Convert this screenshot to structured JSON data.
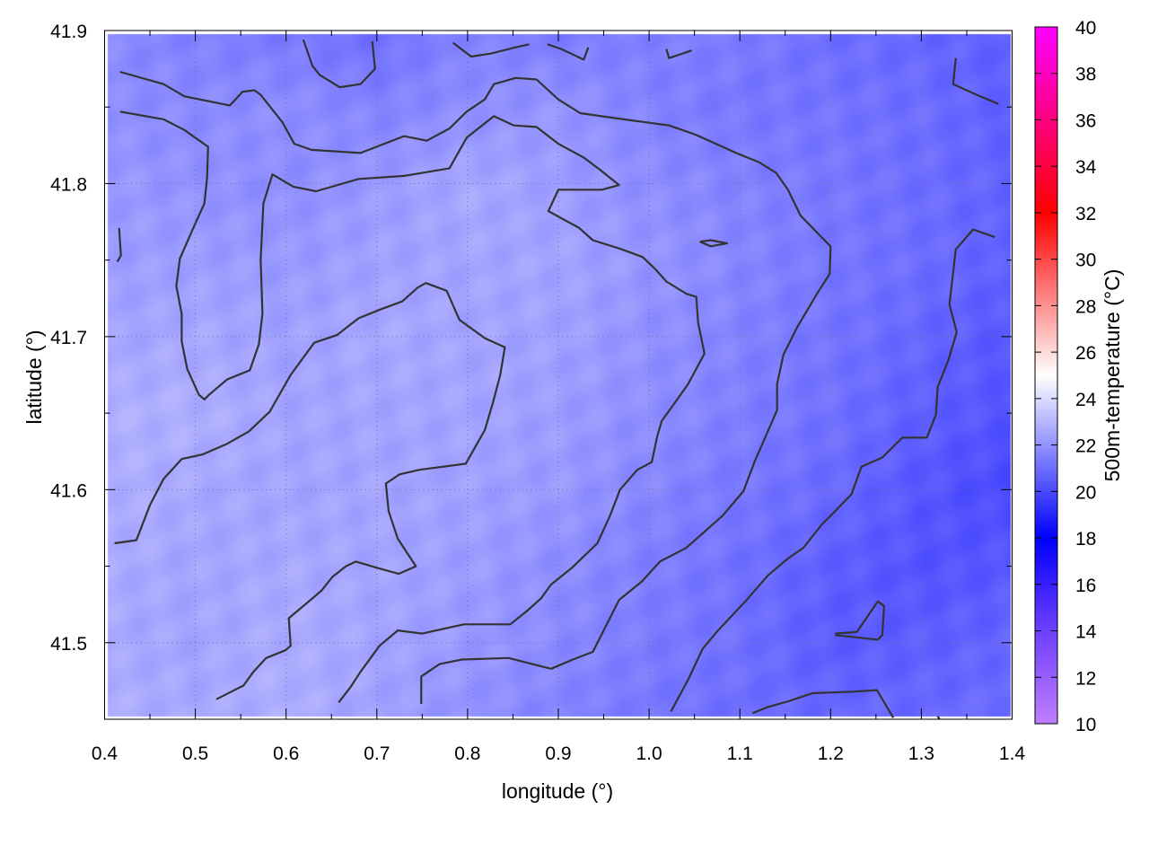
{
  "chart_data": {
    "type": "heatmap",
    "xlabel": "longitude (°)",
    "ylabel": "latitude (°)",
    "colorbar_label": "500m-temperature (°C)",
    "xlim": [
      0.4,
      1.4
    ],
    "ylim": [
      41.45,
      41.9
    ],
    "clim": [
      10,
      40
    ],
    "grid": true,
    "x_ticks": [
      "0.4",
      "0.5",
      "0.6",
      "0.7",
      "0.8",
      "0.9",
      "1.0",
      "1.1",
      "1.2",
      "1.3",
      "1.4"
    ],
    "y_ticks": [
      "41.5",
      "41.6",
      "41.7",
      "41.8",
      "41.9"
    ],
    "colorbar_ticks": [
      "10",
      "12",
      "14",
      "16",
      "18",
      "20",
      "22",
      "24",
      "26",
      "28",
      "30",
      "32",
      "34",
      "36",
      "38",
      "40"
    ],
    "palette": [
      {
        "value": 10,
        "color": "#c080ff"
      },
      {
        "value": 14,
        "color": "#7040ff"
      },
      {
        "value": 18,
        "color": "#0000ff"
      },
      {
        "value": 25,
        "color": "#ffffff"
      },
      {
        "value": 32,
        "color": "#ff0000"
      },
      {
        "value": 40,
        "color": "#ff00ff"
      }
    ],
    "grid_lon": [
      0.4,
      0.5,
      0.6,
      0.7,
      0.8,
      0.9,
      1.0,
      1.1,
      1.2,
      1.3,
      1.4
    ],
    "grid_lat": [
      41.9,
      41.85,
      41.8,
      41.75,
      41.7,
      41.65,
      41.6,
      41.55,
      41.5,
      41.45
    ],
    "values": [
      [
        21.8,
        21.5,
        21.3,
        21.0,
        21.6,
        21.3,
        21.5,
        21.4,
        21.0,
        20.8,
        20.6
      ],
      [
        21.9,
        21.8,
        21.9,
        21.6,
        21.9,
        22.1,
        21.6,
        21.3,
        21.2,
        21.0,
        20.6
      ],
      [
        22.2,
        22.0,
        21.9,
        22.2,
        22.6,
        22.3,
        21.9,
        21.6,
        21.3,
        21.0,
        20.7
      ],
      [
        22.3,
        22.3,
        22.2,
        22.4,
        22.5,
        22.5,
        22.1,
        21.7,
        21.3,
        21.0,
        20.6
      ],
      [
        22.5,
        22.6,
        22.4,
        22.6,
        22.5,
        22.4,
        22.0,
        21.6,
        21.2,
        20.8,
        20.4
      ],
      [
        22.8,
        22.8,
        22.5,
        22.5,
        22.5,
        22.3,
        21.9,
        21.5,
        21.1,
        20.6,
        20.3
      ],
      [
        22.8,
        22.6,
        22.5,
        22.5,
        22.4,
        22.2,
        21.7,
        21.3,
        20.9,
        20.4,
        20.0
      ],
      [
        22.7,
        22.5,
        22.6,
        22.5,
        22.3,
        21.9,
        21.5,
        21.1,
        20.6,
        20.3,
        20.4
      ],
      [
        22.6,
        22.5,
        22.7,
        22.5,
        22.2,
        21.8,
        21.4,
        21.1,
        20.5,
        20.6,
        20.8
      ],
      [
        22.8,
        22.6,
        22.8,
        22.4,
        22.0,
        21.6,
        21.3,
        21.0,
        20.9,
        20.9,
        21.0
      ]
    ],
    "contour_color": "#333333",
    "contours": [
      [
        [
          0.417,
          41.873
        ],
        [
          0.465,
          41.865
        ],
        [
          0.488,
          41.857
        ],
        [
          0.538,
          41.851
        ],
        [
          0.552,
          41.86
        ],
        [
          0.565,
          41.861
        ],
        [
          0.572,
          41.858
        ],
        [
          0.596,
          41.84
        ],
        [
          0.609,
          41.826
        ],
        [
          0.628,
          41.822
        ],
        [
          0.682,
          41.82
        ],
        [
          0.73,
          41.831
        ],
        [
          0.755,
          41.828
        ],
        [
          0.78,
          41.836
        ],
        [
          0.799,
          41.847
        ],
        [
          0.819,
          41.855
        ],
        [
          0.829,
          41.865
        ],
        [
          0.853,
          41.869
        ],
        [
          0.876,
          41.868
        ],
        [
          0.9,
          41.855
        ],
        [
          0.924,
          41.846
        ],
        [
          0.972,
          41.842
        ],
        [
          1.022,
          41.838
        ],
        [
          1.051,
          41.832
        ],
        [
          1.096,
          41.82
        ],
        [
          1.121,
          41.814
        ],
        [
          1.14,
          41.807
        ],
        [
          1.153,
          41.796
        ],
        [
          1.167,
          41.779
        ],
        [
          1.19,
          41.765
        ],
        [
          1.2,
          41.759
        ],
        [
          1.199,
          41.741
        ],
        [
          1.185,
          41.728
        ],
        [
          1.163,
          41.706
        ],
        [
          1.148,
          41.688
        ],
        [
          1.141,
          41.669
        ],
        [
          1.141,
          41.652
        ],
        [
          1.116,
          41.618
        ],
        [
          1.104,
          41.599
        ],
        [
          1.081,
          41.583
        ],
        [
          1.041,
          41.562
        ],
        [
          1.012,
          41.553
        ],
        [
          0.992,
          41.54
        ],
        [
          0.967,
          41.528
        ],
        [
          0.938,
          41.494
        ],
        [
          0.916,
          41.489
        ],
        [
          0.892,
          41.483
        ],
        [
          0.845,
          41.49
        ],
        [
          0.794,
          41.489
        ],
        [
          0.769,
          41.486
        ],
        [
          0.749,
          41.478
        ],
        [
          0.749,
          41.46
        ]
      ],
      [
        [
          0.417,
          41.847
        ],
        [
          0.465,
          41.842
        ],
        [
          0.488,
          41.835
        ],
        [
          0.514,
          41.824
        ],
        [
          0.513,
          41.804
        ],
        [
          0.51,
          41.787
        ],
        [
          0.497,
          41.77
        ],
        [
          0.483,
          41.751
        ],
        [
          0.479,
          41.733
        ],
        [
          0.485,
          41.715
        ],
        [
          0.485,
          41.697
        ],
        [
          0.491,
          41.679
        ],
        [
          0.504,
          41.662
        ],
        [
          0.51,
          41.659
        ],
        [
          0.515,
          41.662
        ],
        [
          0.535,
          41.672
        ],
        [
          0.56,
          41.678
        ],
        [
          0.57,
          41.695
        ],
        [
          0.574,
          41.715
        ],
        [
          0.572,
          41.75
        ],
        [
          0.575,
          41.787
        ],
        [
          0.585,
          41.806
        ],
        [
          0.608,
          41.798
        ],
        [
          0.633,
          41.795
        ],
        [
          0.68,
          41.803
        ],
        [
          0.73,
          41.805
        ],
        [
          0.78,
          41.81
        ],
        [
          0.799,
          41.83
        ],
        [
          0.829,
          41.844
        ],
        [
          0.851,
          41.838
        ],
        [
          0.876,
          41.837
        ],
        [
          0.9,
          41.826
        ],
        [
          0.928,
          41.817
        ],
        [
          0.946,
          41.809
        ],
        [
          0.967,
          41.799
        ],
        [
          0.948,
          41.796
        ],
        [
          0.923,
          41.796
        ],
        [
          0.9,
          41.796
        ],
        [
          0.889,
          41.782
        ],
        [
          0.923,
          41.771
        ],
        [
          0.938,
          41.763
        ],
        [
          0.97,
          41.757
        ],
        [
          0.993,
          41.752
        ],
        [
          1.007,
          41.744
        ],
        [
          1.019,
          41.736
        ],
        [
          1.041,
          41.728
        ],
        [
          1.052,
          41.726
        ],
        [
          1.054,
          41.709
        ],
        [
          1.061,
          41.689
        ],
        [
          1.043,
          41.669
        ],
        [
          1.025,
          41.654
        ],
        [
          1.014,
          41.645
        ],
        [
          1.009,
          41.635
        ],
        [
          1.003,
          41.618
        ],
        [
          0.987,
          41.613
        ],
        [
          0.968,
          41.6
        ],
        [
          0.957,
          41.583
        ],
        [
          0.943,
          41.565
        ],
        [
          0.915,
          41.549
        ],
        [
          0.892,
          41.538
        ],
        [
          0.881,
          41.529
        ],
        [
          0.866,
          41.521
        ],
        [
          0.847,
          41.512
        ],
        [
          0.796,
          41.512
        ],
        [
          0.75,
          41.506
        ],
        [
          0.723,
          41.508
        ],
        [
          0.703,
          41.498
        ],
        [
          0.682,
          41.481
        ],
        [
          0.671,
          41.471
        ],
        [
          0.658,
          41.461
        ]
      ],
      [
        [
          0.411,
          41.565
        ],
        [
          0.435,
          41.567
        ],
        [
          0.45,
          41.59
        ],
        [
          0.465,
          41.607
        ],
        [
          0.485,
          41.62
        ],
        [
          0.508,
          41.623
        ],
        [
          0.535,
          41.63
        ],
        [
          0.559,
          41.638
        ],
        [
          0.582,
          41.651
        ],
        [
          0.605,
          41.675
        ],
        [
          0.631,
          41.696
        ],
        [
          0.656,
          41.701
        ],
        [
          0.68,
          41.712
        ],
        [
          0.705,
          41.718
        ],
        [
          0.728,
          41.723
        ],
        [
          0.745,
          41.732
        ],
        [
          0.754,
          41.735
        ],
        [
          0.777,
          41.73
        ],
        [
          0.791,
          41.711
        ],
        [
          0.819,
          41.699
        ],
        [
          0.841,
          41.693
        ],
        [
          0.836,
          41.675
        ],
        [
          0.828,
          41.657
        ],
        [
          0.819,
          41.639
        ],
        [
          0.798,
          41.617
        ],
        [
          0.747,
          41.613
        ],
        [
          0.725,
          41.61
        ],
        [
          0.71,
          41.604
        ],
        [
          0.713,
          41.586
        ],
        [
          0.723,
          41.568
        ],
        [
          0.743,
          41.55
        ],
        [
          0.724,
          41.545
        ],
        [
          0.7,
          41.549
        ],
        [
          0.677,
          41.553
        ],
        [
          0.666,
          41.55
        ],
        [
          0.651,
          41.543
        ],
        [
          0.639,
          41.534
        ],
        [
          0.623,
          41.526
        ],
        [
          0.603,
          41.516
        ],
        [
          0.605,
          41.498
        ],
        [
          0.599,
          41.495
        ],
        [
          0.578,
          41.49
        ],
        [
          0.564,
          41.481
        ],
        [
          0.553,
          41.472
        ],
        [
          0.523,
          41.463
        ]
      ],
      [
        [
          1.381,
          41.765
        ],
        [
          1.357,
          41.77
        ],
        [
          1.338,
          41.757
        ],
        [
          1.331,
          41.721
        ],
        [
          1.339,
          41.703
        ],
        [
          1.33,
          41.685
        ],
        [
          1.318,
          41.667
        ],
        [
          1.316,
          41.649
        ],
        [
          1.306,
          41.634
        ],
        [
          1.279,
          41.634
        ],
        [
          1.257,
          41.621
        ],
        [
          1.234,
          41.615
        ],
        [
          1.223,
          41.597
        ],
        [
          1.205,
          41.586
        ],
        [
          1.19,
          41.577
        ],
        [
          1.17,
          41.562
        ],
        [
          1.153,
          41.555
        ],
        [
          1.131,
          41.544
        ],
        [
          1.106,
          41.527
        ],
        [
          1.076,
          41.508
        ],
        [
          1.059,
          41.496
        ],
        [
          1.044,
          41.477
        ],
        [
          1.024,
          41.455
        ]
      ],
      [
        [
          1.338,
          41.882
        ],
        [
          1.335,
          41.865
        ],
        [
          1.361,
          41.858
        ],
        [
          1.385,
          41.852
        ]
      ],
      [
        [
          1.114,
          41.454
        ],
        [
          1.131,
          41.458
        ],
        [
          1.155,
          41.462
        ],
        [
          1.18,
          41.467
        ],
        [
          1.224,
          41.468
        ],
        [
          1.251,
          41.469
        ],
        [
          1.269,
          41.451
        ]
      ],
      [
        [
          1.205,
          41.506
        ],
        [
          1.229,
          41.507
        ],
        [
          1.252,
          41.527
        ],
        [
          1.259,
          41.524
        ],
        [
          1.257,
          41.505
        ],
        [
          1.252,
          41.502
        ],
        [
          1.205,
          41.505
        ]
      ],
      [
        [
          1.056,
          41.762
        ],
        [
          1.068,
          41.763
        ],
        [
          1.086,
          41.761
        ],
        [
          1.068,
          41.759
        ],
        [
          1.056,
          41.762
        ]
      ],
      [
        [
          0.619,
          41.894
        ],
        [
          0.629,
          41.877
        ],
        [
          0.637,
          41.871
        ],
        [
          0.659,
          41.863
        ],
        [
          0.682,
          41.865
        ],
        [
          0.698,
          41.875
        ],
        [
          0.695,
          41.893
        ]
      ],
      [
        [
          0.784,
          41.892
        ],
        [
          0.804,
          41.883
        ],
        [
          0.826,
          41.885
        ],
        [
          0.853,
          41.889
        ],
        [
          0.868,
          41.891
        ]
      ],
      [
        [
          0.888,
          41.891
        ],
        [
          0.903,
          41.888
        ],
        [
          0.928,
          41.881
        ],
        [
          0.933,
          41.889
        ]
      ],
      [
        [
          1.019,
          41.888
        ],
        [
          1.022,
          41.882
        ],
        [
          1.047,
          41.887
        ]
      ],
      [
        [
          0.416,
          41.771
        ],
        [
          0.418,
          41.753
        ],
        [
          0.414,
          41.749
        ]
      ],
      [
        [
          1.318,
          41.452
        ],
        [
          1.32,
          41.45
        ]
      ]
    ]
  }
}
